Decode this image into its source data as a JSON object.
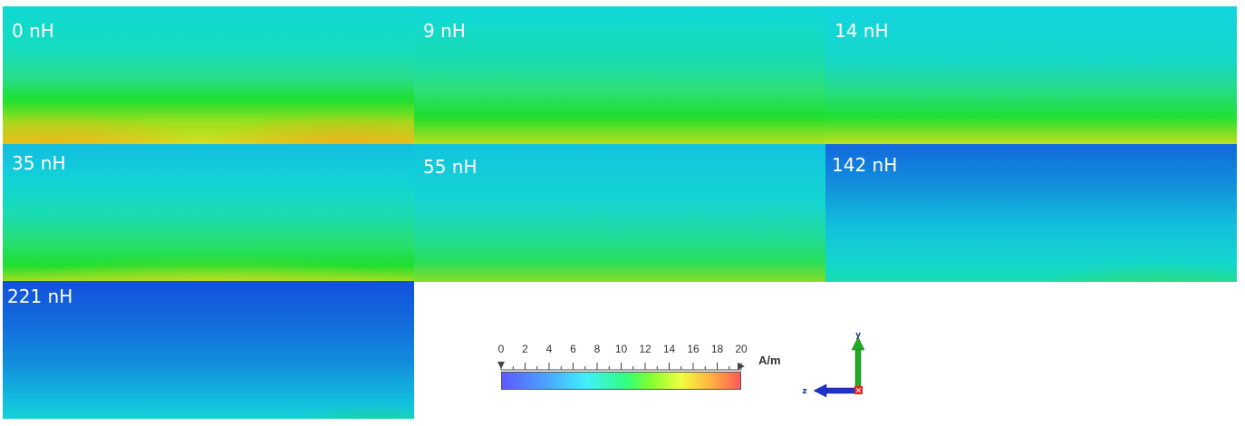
{
  "panels": [
    {
      "id": "0",
      "label": "0 nH"
    },
    {
      "id": "9",
      "label": "9 nH"
    },
    {
      "id": "14",
      "label": "14 nH"
    },
    {
      "id": "35",
      "label": "35 nH"
    },
    {
      "id": "55",
      "label": "55 nH"
    },
    {
      "id": "142",
      "label": "142 nH"
    },
    {
      "id": "221",
      "label": "221 nH"
    }
  ],
  "legend": {
    "ticks": [
      "0",
      "2",
      "4",
      "6",
      "8",
      "10",
      "12",
      "14",
      "16",
      "18",
      "20"
    ],
    "unit": "A/m",
    "range": [
      0,
      20
    ],
    "colors": [
      "#5a5aff",
      "#40f0ff",
      "#30ff80",
      "#f0ff40",
      "#ff5a5a"
    ]
  },
  "axes": {
    "y_label": "y",
    "z_label": "z",
    "y_color": "#22aa22",
    "z_color": "#2233cc",
    "origin_color": "#dd2222"
  }
}
